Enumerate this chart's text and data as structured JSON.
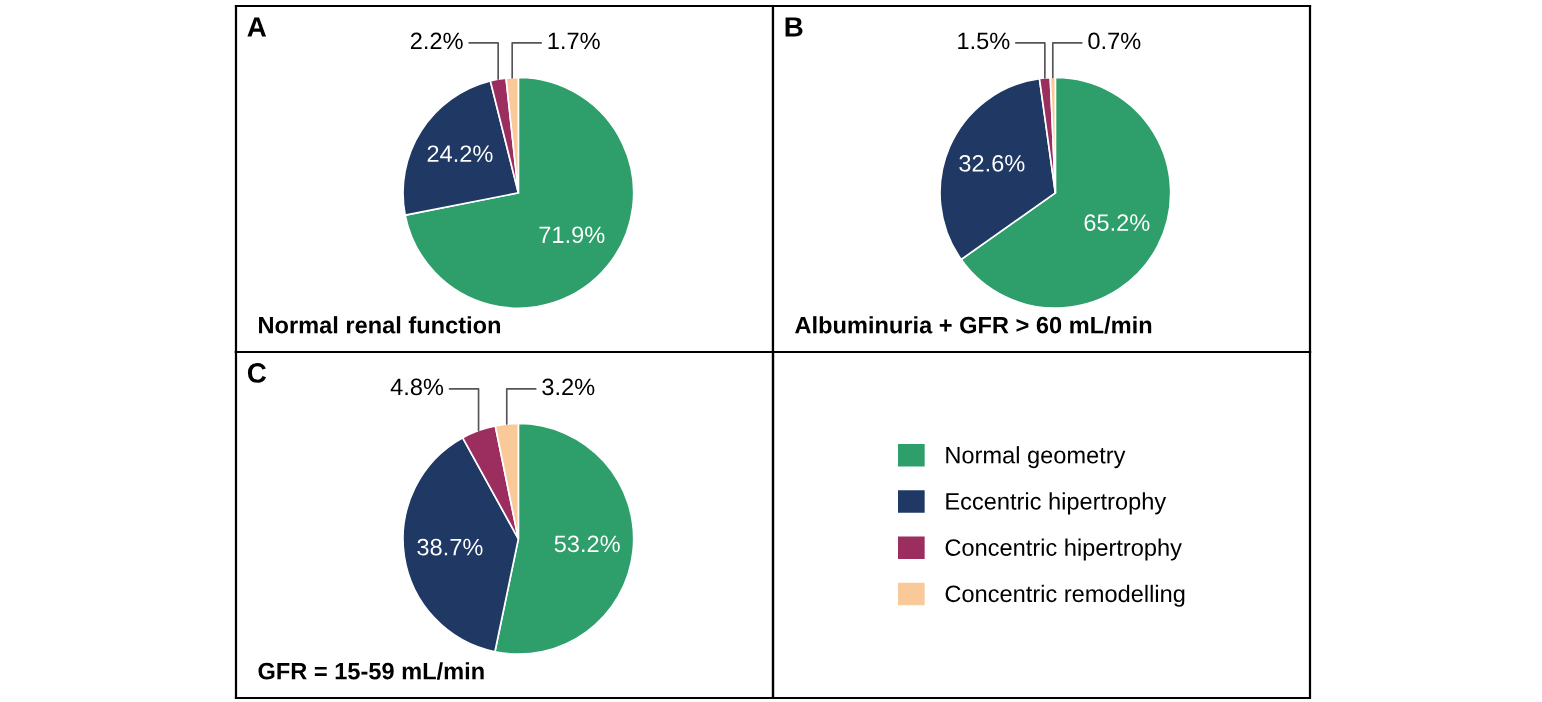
{
  "chart_data": [
    {
      "type": "pie",
      "title": "A",
      "xlabel": "Normal renal function",
      "categories": [
        "Normal geometry",
        "Eccentric hipertrophy",
        "Concentric hipertrophy",
        "Concentric remodelling"
      ],
      "values": [
        71.9,
        24.2,
        2.2,
        1.7
      ],
      "value_labels": [
        "71.9%",
        "24.2%",
        "2.2%",
        "1.7%"
      ],
      "colors": [
        "#2e9e6b",
        "#1f3864",
        "#9b2d5f",
        "#f9c99a"
      ],
      "legend": "right"
    },
    {
      "type": "pie",
      "title": "B",
      "xlabel": "Albuminuria + GFR > 60 mL/min",
      "categories": [
        null,
        null,
        null,
        null
      ],
      "values": [
        65.2,
        32.6,
        1.5,
        0.7
      ],
      "value_labels": [
        "65.2%",
        "32.6%",
        "1.5%",
        "0.7%"
      ],
      "colors": [
        "#2e9e6b",
        "#1f3864",
        "#9b2d5f",
        "#f9c99a"
      ]
    },
    {
      "type": "pie",
      "title": "C",
      "xlabel": "GFR = 15-59 mL/min",
      "categories": [
        null,
        null,
        null,
        null
      ],
      "values": [
        53.2,
        38.7,
        4.8,
        3.2
      ],
      "value_labels": [
        "53.2%",
        "38.7%",
        "4.8%",
        "3.2%"
      ],
      "colors": [
        "#2e9e6b",
        "#1f3864",
        "#9b2d5f",
        "#f9c99a"
      ]
    }
  ]
}
